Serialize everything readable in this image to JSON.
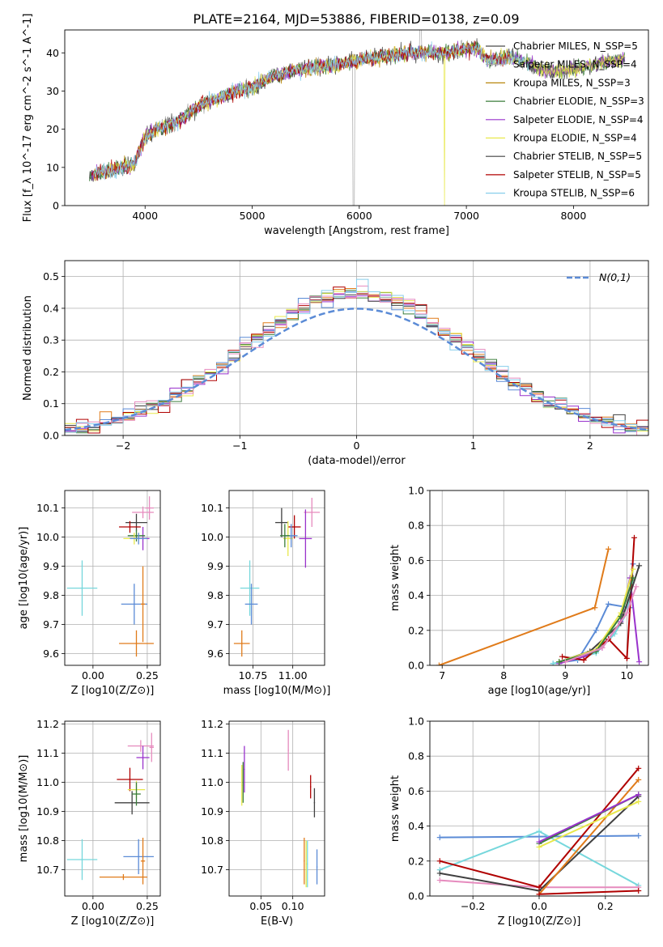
{
  "figure": {
    "title": "PLATE=2164, MJD=53886, FIBERID=0138, z=0.09"
  },
  "chart_data": [
    {
      "id": "spectrum",
      "type": "line",
      "title": "PLATE=2164, MJD=53886, FIBERID=0138, z=0.09",
      "xlabel": "wavelength [Angstrom, rest frame]",
      "ylabel": "Flux [f_λ 10^-17 erg cm^-2 s^-1 A^-1]",
      "xlim": [
        3250,
        8700
      ],
      "ylim": [
        0,
        46
      ],
      "xticks": [
        4000,
        5000,
        6000,
        7000,
        8000
      ],
      "yticks": [
        0,
        10,
        20,
        30,
        40
      ],
      "grid": false,
      "legend_position": "top-right",
      "series": [
        {
          "name": "Chabrier MILES, N_SSP=5",
          "color": "#4a4a4a"
        },
        {
          "name": "Salpeter MILES, N_SSP=4",
          "color": "#aaaaaa"
        },
        {
          "name": "Kroupa MILES, N_SSP=3",
          "color": "#b8860b"
        },
        {
          "name": "Chabrier ELODIE, N_SSP=3",
          "color": "#3a7d3a"
        },
        {
          "name": "Salpeter ELODIE, N_SSP=4",
          "color": "#9932cc"
        },
        {
          "name": "Kroupa ELODIE, N_SSP=4",
          "color": "#e8e84a"
        },
        {
          "name": "Chabrier STELIB, N_SSP=5",
          "color": "#404040"
        },
        {
          "name": "Salpeter STELIB, N_SSP=5",
          "color": "#b00000"
        },
        {
          "name": "Kroupa STELIB, N_SSP=6",
          "color": "#87ceeb"
        }
      ],
      "continuum": {
        "x": [
          3500,
          3700,
          3900,
          4000,
          4100,
          4300,
          4500,
          4800,
          5000,
          5200,
          5500,
          5800,
          6000,
          6300,
          6500,
          6800,
          7000,
          7100,
          7200,
          7400,
          7600,
          7800,
          8000,
          8200,
          8400,
          8650
        ],
        "y": [
          8,
          9.5,
          11,
          18,
          20,
          22,
          26,
          29.5,
          31,
          34,
          36,
          37,
          38,
          39.5,
          40,
          40,
          41,
          41.5,
          38,
          39,
          37,
          35,
          35.5,
          37,
          38,
          39.5
        ]
      }
    },
    {
      "id": "residuals",
      "type": "histogram",
      "xlabel": "(data-model)/error",
      "ylabel": "Normed distribution",
      "xlim": [
        -2.5,
        2.5
      ],
      "ylim": [
        0,
        0.55
      ],
      "xticks": [
        -2,
        -1,
        0,
        1,
        2
      ],
      "yticks": [
        0.0,
        0.1,
        0.2,
        0.3,
        0.4,
        0.5
      ],
      "grid": true,
      "legend_position": "top-right",
      "reference": {
        "name": "N(0,1)",
        "color": "#5b8bd6"
      }
    },
    {
      "id": "age-vs-Z",
      "type": "scatter",
      "xlabel": "Z [log10(Z/Z⊙)]",
      "ylabel": "age [log10(age/yr)]",
      "xlim": [
        -0.13,
        0.31
      ],
      "ylim": [
        9.56,
        10.16
      ],
      "xticks": [
        0.0,
        0.25
      ],
      "yticks": [
        9.6,
        9.7,
        9.8,
        9.9,
        10.0,
        10.1
      ],
      "grid": true,
      "points": [
        {
          "x": -0.05,
          "y": 9.825,
          "xerr": 0.07,
          "yerr": 0.095,
          "color": "#76d7dc"
        },
        {
          "x": 0.19,
          "y": 9.77,
          "xerr": 0.06,
          "yerr": 0.07,
          "color": "#5b8bd6"
        },
        {
          "x": 0.2,
          "y": 9.635,
          "xerr": 0.08,
          "yerr": 0.045,
          "color": "#e07b1a"
        },
        {
          "x": 0.23,
          "y": 9.77,
          "xerr": 0.01,
          "yerr": 0.13,
          "color": "#e07b1a"
        },
        {
          "x": 0.2,
          "y": 10.05,
          "xerr": 0.05,
          "yerr": 0.03,
          "color": "#404040"
        },
        {
          "x": 0.23,
          "y": 10.085,
          "xerr": 0.05,
          "yerr": 0.02,
          "color": "#e68bbe"
        },
        {
          "x": 0.26,
          "y": 10.1,
          "xerr": 0.02,
          "yerr": 0.04,
          "color": "#e68bbe"
        },
        {
          "x": 0.17,
          "y": 10.035,
          "xerr": 0.05,
          "yerr": 0.02,
          "color": "#b00000"
        },
        {
          "x": 0.23,
          "y": 9.995,
          "xerr": 0.03,
          "yerr": 0.04,
          "color": "#9932cc"
        },
        {
          "x": 0.2,
          "y": 10.005,
          "xerr": 0.04,
          "yerr": 0.02,
          "color": "#3a7d3a"
        },
        {
          "x": 0.19,
          "y": 9.995,
          "xerr": 0.05,
          "yerr": 0.02,
          "color": "#e8e84a"
        },
        {
          "x": 0.21,
          "y": 9.995,
          "xerr": 0.04,
          "yerr": 0.02,
          "color": "#5b8bd6"
        }
      ]
    },
    {
      "id": "age-vs-mass",
      "type": "scatter",
      "xlabel": "mass [log10(M/M⊙)]",
      "ylabel": "",
      "xlim": [
        10.6,
        11.2
      ],
      "ylim": [
        9.56,
        10.16
      ],
      "xticks": [
        10.75,
        11.0
      ],
      "yticks": [
        9.6,
        9.7,
        9.8,
        9.9,
        10.0,
        10.1
      ],
      "grid": true,
      "points": [
        {
          "x": 10.73,
          "y": 9.825,
          "xerr": 0.06,
          "yerr": 0.095,
          "color": "#76d7dc"
        },
        {
          "x": 10.74,
          "y": 9.77,
          "xerr": 0.04,
          "yerr": 0.07,
          "color": "#5b8bd6"
        },
        {
          "x": 10.68,
          "y": 9.635,
          "xerr": 0.05,
          "yerr": 0.045,
          "color": "#e07b1a"
        },
        {
          "x": 10.93,
          "y": 10.05,
          "xerr": 0.04,
          "yerr": 0.05,
          "color": "#404040"
        },
        {
          "x": 11.12,
          "y": 10.085,
          "xerr": 0.05,
          "yerr": 0.05,
          "color": "#e68bbe"
        },
        {
          "x": 11.01,
          "y": 10.035,
          "xerr": 0.04,
          "yerr": 0.04,
          "color": "#b00000"
        },
        {
          "x": 11.08,
          "y": 9.995,
          "xerr": 0.04,
          "yerr": 0.1,
          "color": "#9932cc"
        },
        {
          "x": 10.97,
          "y": 9.995,
          "xerr": 0.03,
          "yerr": 0.06,
          "color": "#e8e84a"
        },
        {
          "x": 10.99,
          "y": 10.005,
          "xerr": 0.04,
          "yerr": 0.04,
          "color": "#5b8bd6"
        },
        {
          "x": 10.95,
          "y": 10.005,
          "xerr": 0.03,
          "yerr": 0.04,
          "color": "#3a7d3a"
        }
      ]
    },
    {
      "id": "mass-weight-vs-age",
      "type": "line",
      "xlabel": "age [log10(age/yr)]",
      "ylabel": "mass weight",
      "xlim": [
        6.8,
        10.35
      ],
      "ylim": [
        0,
        1
      ],
      "xticks": [
        7,
        8,
        9,
        10
      ],
      "yticks": [
        0.0,
        0.2,
        0.4,
        0.6,
        0.8,
        1.0
      ],
      "grid": true,
      "series": [
        {
          "color": "#e07b1a",
          "x": [
            6.95,
            9.48,
            9.7
          ],
          "y": [
            0.0,
            0.33,
            0.665
          ]
        },
        {
          "color": "#5b8bd6",
          "x": [
            8.8,
            9.2,
            9.5,
            9.7,
            10.05,
            10.1
          ],
          "y": [
            0.01,
            0.03,
            0.2,
            0.35,
            0.33,
            0.58
          ]
        },
        {
          "color": "#76d7dc",
          "x": [
            8.8,
            9.2,
            9.5,
            9.8,
            10.0,
            10.1
          ],
          "y": [
            0.01,
            0.04,
            0.07,
            0.18,
            0.3,
            0.5
          ]
        },
        {
          "color": "#9932cc",
          "x": [
            8.9,
            9.3,
            9.6,
            9.9,
            10.05,
            10.2
          ],
          "y": [
            0.01,
            0.05,
            0.1,
            0.25,
            0.5,
            0.02
          ]
        },
        {
          "color": "#b00000",
          "x": [
            8.95,
            9.3,
            9.7,
            10.0,
            10.12
          ],
          "y": [
            0.05,
            0.03,
            0.15,
            0.04,
            0.73
          ]
        },
        {
          "color": "#404040",
          "x": [
            8.9,
            9.4,
            9.9,
            10.2
          ],
          "y": [
            0.02,
            0.08,
            0.24,
            0.57
          ]
        },
        {
          "color": "#e8e84a",
          "x": [
            8.9,
            9.5,
            9.9,
            10.1
          ],
          "y": [
            0.02,
            0.09,
            0.3,
            0.55
          ]
        },
        {
          "color": "#3a7d3a",
          "x": [
            8.9,
            9.5,
            9.9,
            10.1
          ],
          "y": [
            0.02,
            0.08,
            0.28,
            0.5
          ]
        },
        {
          "color": "#e68bbe",
          "x": [
            9.0,
            9.6,
            10.0,
            10.15
          ],
          "y": [
            0.02,
            0.1,
            0.3,
            0.45
          ]
        }
      ]
    },
    {
      "id": "mass-vs-Z",
      "type": "scatter",
      "xlabel": "Z [log10(Z/Z⊙)]",
      "ylabel": "mass [log10(M/M⊙)]",
      "xlim": [
        -0.13,
        0.31
      ],
      "ylim": [
        10.61,
        11.21
      ],
      "xticks": [
        0.0,
        0.25
      ],
      "yticks": [
        10.7,
        10.8,
        10.9,
        11.0,
        11.1,
        11.2
      ],
      "grid": true,
      "points": [
        {
          "x": -0.05,
          "y": 10.735,
          "xerr": 0.07,
          "yerr": 0.07,
          "color": "#76d7dc"
        },
        {
          "x": 0.21,
          "y": 10.745,
          "xerr": 0.07,
          "yerr": 0.06,
          "color": "#5b8bd6"
        },
        {
          "x": 0.14,
          "y": 10.675,
          "xerr": 0.11,
          "yerr": 0.01,
          "color": "#e07b1a"
        },
        {
          "x": 0.23,
          "y": 10.73,
          "xerr": 0.01,
          "yerr": 0.08,
          "color": "#e07b1a"
        },
        {
          "x": 0.18,
          "y": 10.93,
          "xerr": 0.08,
          "yerr": 0.04,
          "color": "#404040"
        },
        {
          "x": 0.22,
          "y": 11.125,
          "xerr": 0.06,
          "yerr": 0.02,
          "color": "#e68bbe"
        },
        {
          "x": 0.27,
          "y": 11.12,
          "xerr": 0.01,
          "yerr": 0.05,
          "color": "#e68bbe"
        },
        {
          "x": 0.17,
          "y": 11.01,
          "xerr": 0.06,
          "yerr": 0.04,
          "color": "#b00000"
        },
        {
          "x": 0.23,
          "y": 11.085,
          "xerr": 0.03,
          "yerr": 0.04,
          "color": "#9932cc"
        },
        {
          "x": 0.2,
          "y": 10.975,
          "xerr": 0.04,
          "yerr": 0.03,
          "color": "#e8e84a"
        },
        {
          "x": 0.2,
          "y": 10.96,
          "xerr": 0.02,
          "yerr": 0.04,
          "color": "#3a7d3a"
        }
      ]
    },
    {
      "id": "mass-vs-EBV",
      "type": "scatter",
      "xlabel": "E(B-V)",
      "ylabel": "",
      "xlim": [
        0.0,
        0.15
      ],
      "ylim": [
        10.61,
        11.21
      ],
      "xticks": [
        0.05,
        0.1
      ],
      "yticks": [
        10.7,
        10.8,
        10.9,
        11.0,
        11.1,
        11.2
      ],
      "grid": true,
      "points": [
        {
          "x": 0.02,
          "y": 10.99,
          "yerr": 0.07,
          "color": "#e8e84a"
        },
        {
          "x": 0.022,
          "y": 11.0,
          "yerr": 0.07,
          "color": "#3a7d3a"
        },
        {
          "x": 0.024,
          "y": 11.045,
          "yerr": 0.08,
          "color": "#9932cc"
        },
        {
          "x": 0.093,
          "y": 11.11,
          "yerr": 0.07,
          "color": "#e68bbe"
        },
        {
          "x": 0.118,
          "y": 10.73,
          "yerr": 0.08,
          "color": "#e07b1a"
        },
        {
          "x": 0.121,
          "y": 10.72,
          "yerr": 0.08,
          "color": "#e8e84a"
        },
        {
          "x": 0.123,
          "y": 10.72,
          "yerr": 0.08,
          "color": "#76d7dc"
        },
        {
          "x": 0.128,
          "y": 10.985,
          "yerr": 0.04,
          "color": "#b00000"
        },
        {
          "x": 0.134,
          "y": 10.93,
          "yerr": 0.05,
          "color": "#404040"
        },
        {
          "x": 0.138,
          "y": 10.71,
          "yerr": 0.06,
          "color": "#5b8bd6"
        }
      ]
    },
    {
      "id": "mass-weight-vs-Z",
      "type": "line",
      "xlabel": "Z [log10(Z/Z⊙)]",
      "ylabel": "mass weight",
      "xlim": [
        -0.33,
        0.33
      ],
      "ylim": [
        0,
        1
      ],
      "xticks": [
        -0.2,
        0.0,
        0.2
      ],
      "yticks": [
        0.0,
        0.2,
        0.4,
        0.6,
        0.8,
        1.0
      ],
      "grid": true,
      "series": [
        {
          "color": "#5b8bd6",
          "x": [
            -0.3,
            0.0,
            0.3
          ],
          "y": [
            0.335,
            0.34,
            0.345
          ]
        },
        {
          "color": "#76d7dc",
          "x": [
            -0.3,
            0.0,
            0.3
          ],
          "y": [
            0.15,
            0.37,
            0.06
          ]
        },
        {
          "color": "#e68bbe",
          "x": [
            -0.3,
            0.0,
            0.3
          ],
          "y": [
            0.09,
            0.05,
            0.05
          ]
        },
        {
          "color": "#404040",
          "x": [
            -0.3,
            0.0,
            0.3
          ],
          "y": [
            0.13,
            0.03,
            0.57
          ]
        },
        {
          "color": "#b00000",
          "x": [
            -0.3,
            0.0,
            0.3
          ],
          "y": [
            0.2,
            0.05,
            0.73
          ]
        },
        {
          "color": "#e07b1a",
          "x": [
            0.0,
            0.3
          ],
          "y": [
            0.01,
            0.665
          ]
        },
        {
          "color": "#3a7d3a",
          "x": [
            0.0,
            0.3
          ],
          "y": [
            0.3,
            0.58
          ]
        },
        {
          "color": "#e8e84a",
          "x": [
            0.0,
            0.3
          ],
          "y": [
            0.28,
            0.54
          ]
        },
        {
          "color": "#9932cc",
          "x": [
            0.0,
            0.3
          ],
          "y": [
            0.31,
            0.58
          ]
        },
        {
          "color": "#b00000",
          "x": [
            0.0,
            0.3
          ],
          "y": [
            0.01,
            0.03
          ]
        }
      ]
    }
  ]
}
